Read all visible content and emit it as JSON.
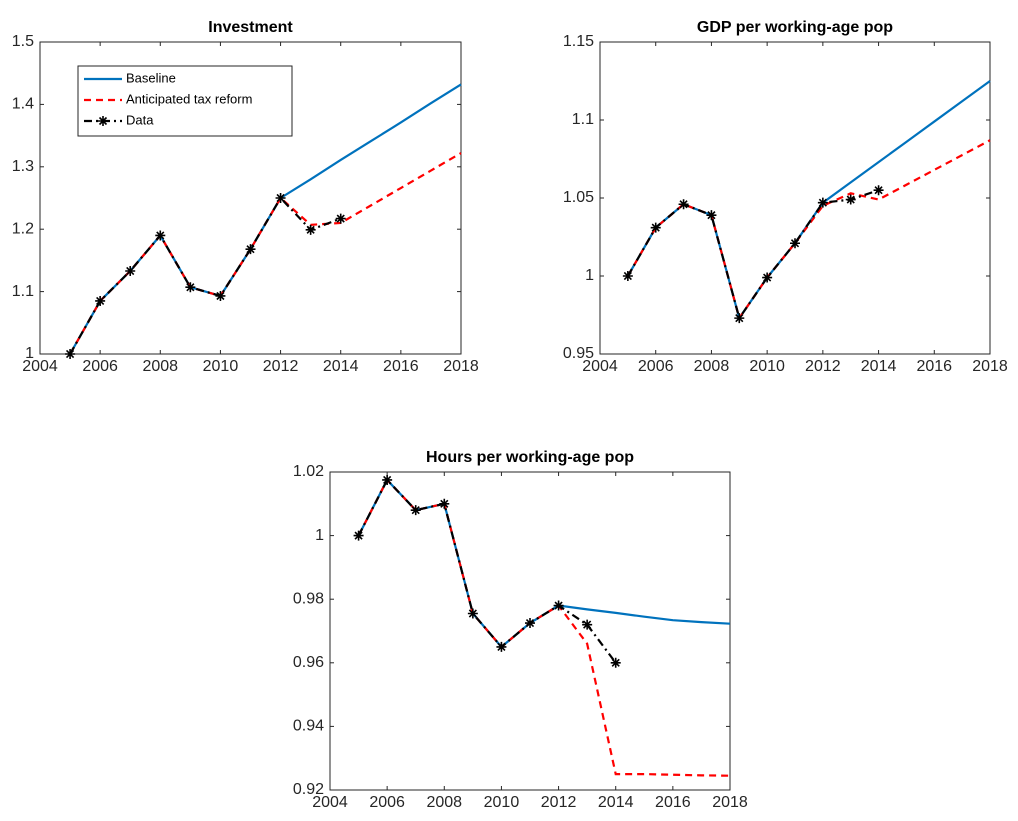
{
  "chart_data": [
    {
      "type": "line",
      "title": "Investment",
      "x": [
        2005,
        2006,
        2007,
        2008,
        2009,
        2010,
        2011,
        2012,
        2013,
        2014,
        2015,
        2016,
        2017,
        2018
      ],
      "series": [
        {
          "name": "Baseline",
          "color": "#0072bd",
          "style": "solid",
          "values": [
            1.0,
            1.085,
            1.133,
            1.19,
            1.107,
            1.093,
            1.168,
            1.25,
            1.28,
            1.311,
            1.341,
            1.371,
            1.402,
            1.432
          ]
        },
        {
          "name": "Anticipated tax reform",
          "color": "#ff0000",
          "style": "dashed",
          "values": [
            1.0,
            1.085,
            1.133,
            1.19,
            1.107,
            1.093,
            1.168,
            1.25,
            1.207,
            1.21,
            1.238,
            1.266,
            1.294,
            1.322
          ]
        },
        {
          "name": "Data",
          "color": "#000000",
          "style": "dashdot",
          "marker": "*",
          "values": [
            1.0,
            1.085,
            1.133,
            1.19,
            1.107,
            1.093,
            1.168,
            1.25,
            1.199,
            1.217,
            null,
            null,
            null,
            null
          ]
        }
      ],
      "xlim": [
        2004,
        2018
      ],
      "xticks": [
        2004,
        2006,
        2008,
        2010,
        2012,
        2014,
        2016,
        2018
      ],
      "ylim": [
        1,
        1.5
      ],
      "yticks": [
        1,
        1.1,
        1.2,
        1.3,
        1.4,
        1.5
      ],
      "legend": "upper left"
    },
    {
      "type": "line",
      "title": "GDP per working-age pop",
      "x": [
        2005,
        2006,
        2007,
        2008,
        2009,
        2010,
        2011,
        2012,
        2013,
        2014,
        2015,
        2016,
        2017,
        2018
      ],
      "series": [
        {
          "color": "#0072bd",
          "style": "solid",
          "values": [
            1.0,
            1.031,
            1.046,
            1.039,
            0.973,
            0.999,
            1.021,
            1.047,
            1.06,
            1.073,
            1.086,
            1.099,
            1.112,
            1.125
          ]
        },
        {
          "color": "#ff0000",
          "style": "dashed",
          "values": [
            1.0,
            1.031,
            1.046,
            1.039,
            0.973,
            0.999,
            1.021,
            1.045,
            1.053,
            1.049,
            1.0585,
            1.068,
            1.0775,
            1.087
          ]
        },
        {
          "color": "#000000",
          "style": "dashdot",
          "marker": "*",
          "values": [
            1.0,
            1.031,
            1.046,
            1.039,
            0.973,
            0.999,
            1.021,
            1.047,
            1.049,
            1.055,
            null,
            null,
            null,
            null
          ]
        }
      ],
      "xlim": [
        2004,
        2018
      ],
      "xticks": [
        2004,
        2006,
        2008,
        2010,
        2012,
        2014,
        2016,
        2018
      ],
      "ylim": [
        0.95,
        1.15
      ],
      "yticks": [
        0.95,
        {
          "value": 1,
          "label": "1"
        },
        1.05,
        {
          "value": 1.1,
          "label": "1.1"
        },
        1.15
      ]
    },
    {
      "type": "line",
      "title": "Hours per working-age pop",
      "x": [
        2005,
        2006,
        2007,
        2008,
        2009,
        2010,
        2011,
        2012,
        2013,
        2014,
        2015,
        2016,
        2017,
        2018
      ],
      "series": [
        {
          "color": "#0072bd",
          "style": "solid",
          "values": [
            1.0,
            1.0175,
            1.008,
            1.01,
            0.9755,
            0.965,
            0.9725,
            0.978,
            0.9768,
            0.9757,
            0.9745,
            0.9734,
            0.9728,
            0.9723
          ]
        },
        {
          "color": "#ff0000",
          "style": "dashed",
          "values": [
            1.0,
            1.0175,
            1.008,
            1.01,
            0.9755,
            0.965,
            0.9725,
            0.978,
            0.966,
            0.925,
            0.925,
            0.9248,
            0.9246,
            0.9245
          ]
        },
        {
          "color": "#000000",
          "style": "dashdot",
          "marker": "*",
          "values": [
            1.0,
            1.0175,
            1.008,
            1.01,
            0.9755,
            0.965,
            0.9725,
            0.978,
            0.972,
            0.96,
            null,
            null,
            null,
            null
          ]
        }
      ],
      "xlim": [
        2004,
        2018
      ],
      "xticks": [
        2004,
        2006,
        2008,
        2010,
        2012,
        2014,
        2016,
        2018
      ],
      "ylim": [
        0.92,
        1.02
      ],
      "yticks": [
        0.92,
        0.94,
        0.96,
        0.98,
        {
          "value": 1,
          "label": "1"
        },
        1.02
      ]
    }
  ]
}
